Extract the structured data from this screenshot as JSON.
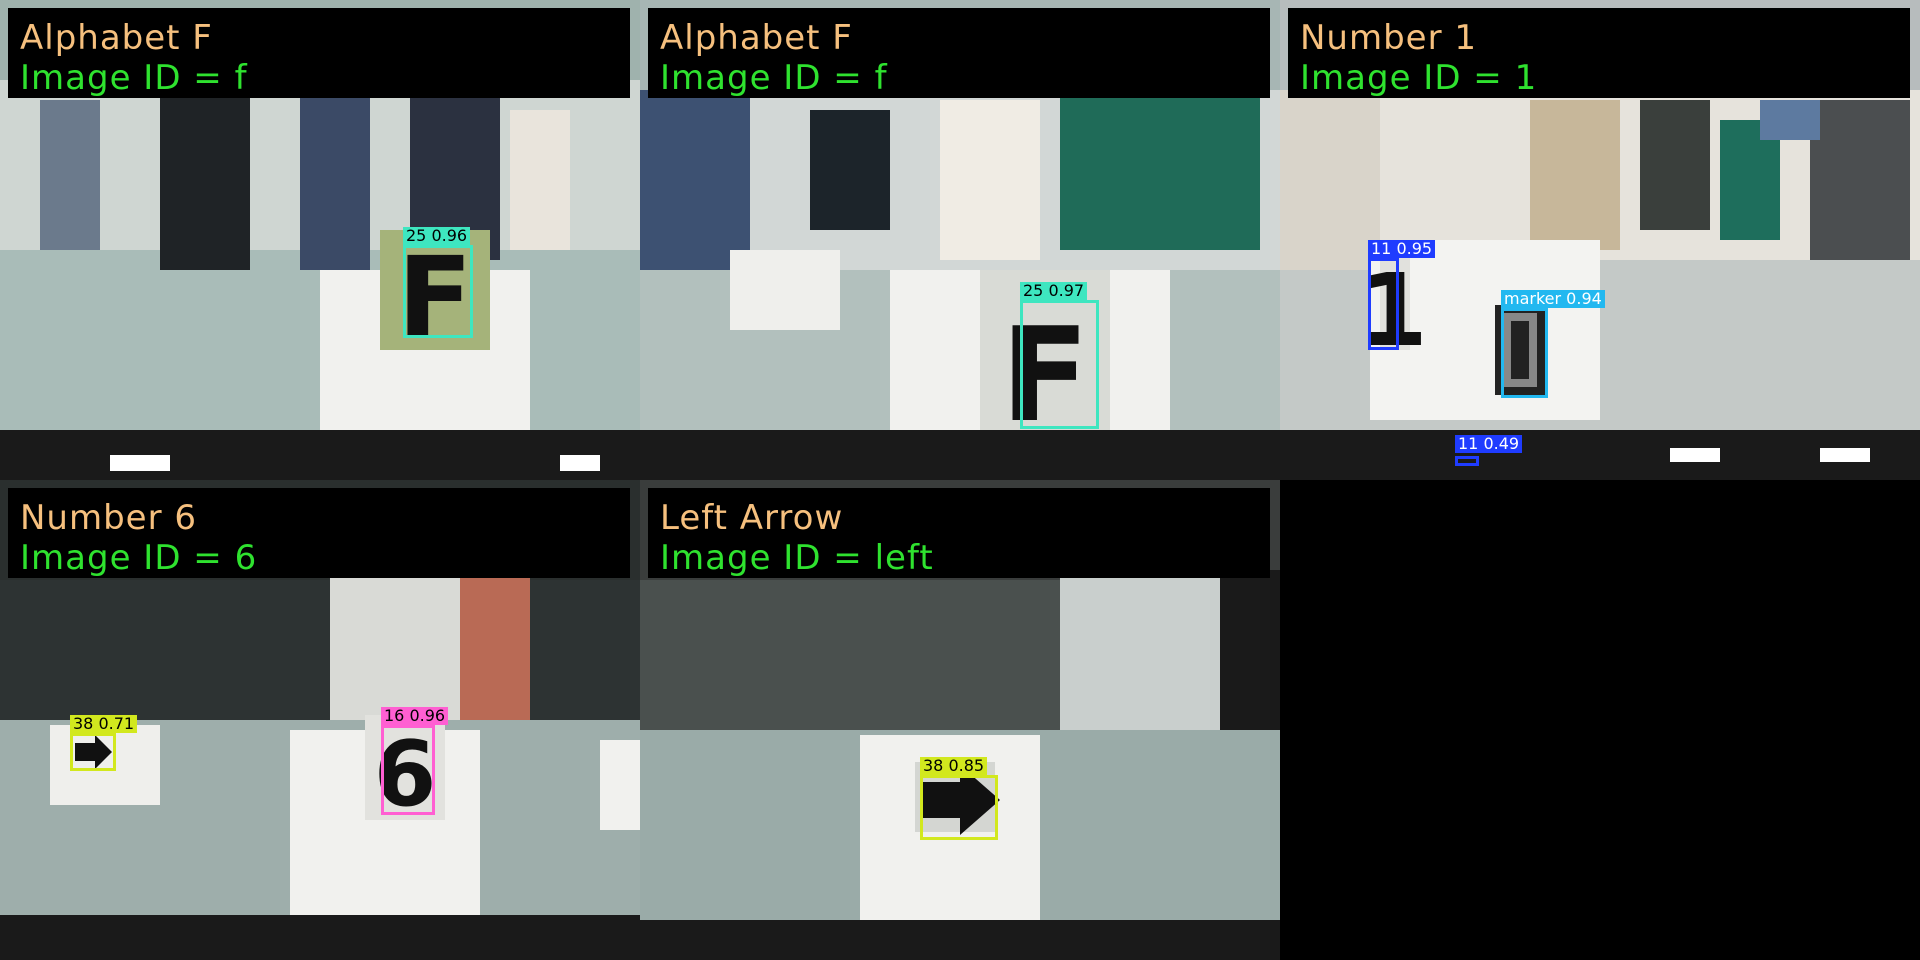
{
  "tiles": [
    {
      "title": "Alphabet F",
      "image_id_line": "Image ID = f",
      "detections": [
        {
          "label": "25 0.96",
          "color": "#3ee6c0"
        }
      ]
    },
    {
      "title": "Alphabet F",
      "image_id_line": "Image ID = f",
      "detections": [
        {
          "label": "25 0.97",
          "color": "#3ee6c0"
        }
      ]
    },
    {
      "title": "Number 1",
      "image_id_line": "Image ID = 1",
      "detections": [
        {
          "label": "11 0.95",
          "color": "#1f3cff"
        },
        {
          "label": "marker 0.94",
          "color": "#22b8f0"
        },
        {
          "label": "11 0.49",
          "color": "#1f3cff"
        }
      ]
    },
    {
      "title": "Number 6",
      "image_id_line": "Image ID = 6",
      "detections": [
        {
          "label": "38 0.71",
          "color": "#d2e81e"
        },
        {
          "label": "16 0.96",
          "color": "#ff5fd2"
        }
      ]
    },
    {
      "title": "Left Arrow",
      "image_id_line": "Image ID = left",
      "detections": [
        {
          "label": "38 0.85",
          "color": "#d2e81e"
        }
      ]
    }
  ]
}
